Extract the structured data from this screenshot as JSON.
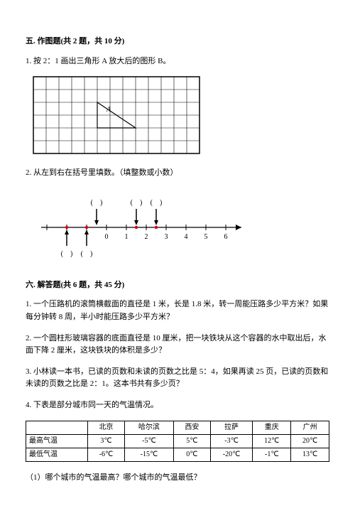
{
  "sec5": {
    "title": "五. 作图题(共 2 题，共 10 分)",
    "q1": "1. 按 2：1 画出三角形 A 放大后的图形 B。",
    "q2": "2. 从左到右在括号里填数。（填整数或小数）"
  },
  "grid": {
    "cell": 18,
    "cols": 13,
    "rows": 6,
    "triangle": {
      "label": "A",
      "pts": [
        [
          5,
          2
        ],
        [
          5,
          4
        ],
        [
          8,
          4
        ]
      ]
    }
  },
  "numline": {
    "min": -3,
    "max": 6,
    "unit": 28,
    "ticks": [
      -3,
      -2,
      -1,
      0,
      1,
      2,
      3,
      4,
      5,
      6
    ],
    "labels": [
      0,
      1,
      2,
      3,
      4,
      5,
      6
    ],
    "reds": [
      -2,
      -1,
      1.5,
      2.5
    ],
    "arrows": [
      {
        "x": -2,
        "dir": "up"
      },
      {
        "x": -1,
        "dir": "up"
      },
      {
        "x": -0.5,
        "dir": "down"
      },
      {
        "x": 1.5,
        "dir": "down"
      },
      {
        "x": 2.5,
        "dir": "down"
      }
    ],
    "top_brackets": [
      {
        "x": -0.5
      },
      {
        "x": 1.5
      },
      {
        "x": 2.5
      }
    ],
    "bot_brackets": [
      {
        "x": -2
      },
      {
        "x": -1
      }
    ]
  },
  "sec6": {
    "title": "六. 解答题(共 6 题，共 45 分)",
    "q1": "1. 一个压路机的滚筒横截面的直径是 1 米，长是 1.8 米，转一周能压路多少平方米？如果每分钟转 8 周，半小时能压路多少平方米？",
    "q2": "2. 一个圆柱形玻璃容器的底面直径是 10 厘米，把一块铁块从这个容器的水中取出后，水面下降 2 厘米，这块铁块的体积是多少？",
    "q3": "3. 小林读一本书，已读的页数和未读的页数之比是 5：4，如果再读 25 页，已读的页数和未读的页数之比是 2：1。这本书共有多少页？",
    "q4": "4. 下表是部分城市同一天的气温情况。",
    "q4_1": "（1）哪个城市的气温最高？哪个城市的气温最低？"
  },
  "table": {
    "cols": [
      "",
      "北京",
      "哈尔滨",
      "西安",
      "拉萨",
      "重庆",
      "广州"
    ],
    "rows": [
      [
        "最高气温",
        "3℃",
        "-5℃",
        "5℃",
        "-3℃",
        "12℃",
        "20℃"
      ],
      [
        "最低气温",
        "-6℃",
        "-15℃",
        "0℃",
        "-20℃",
        "-1℃",
        "13℃"
      ]
    ]
  }
}
